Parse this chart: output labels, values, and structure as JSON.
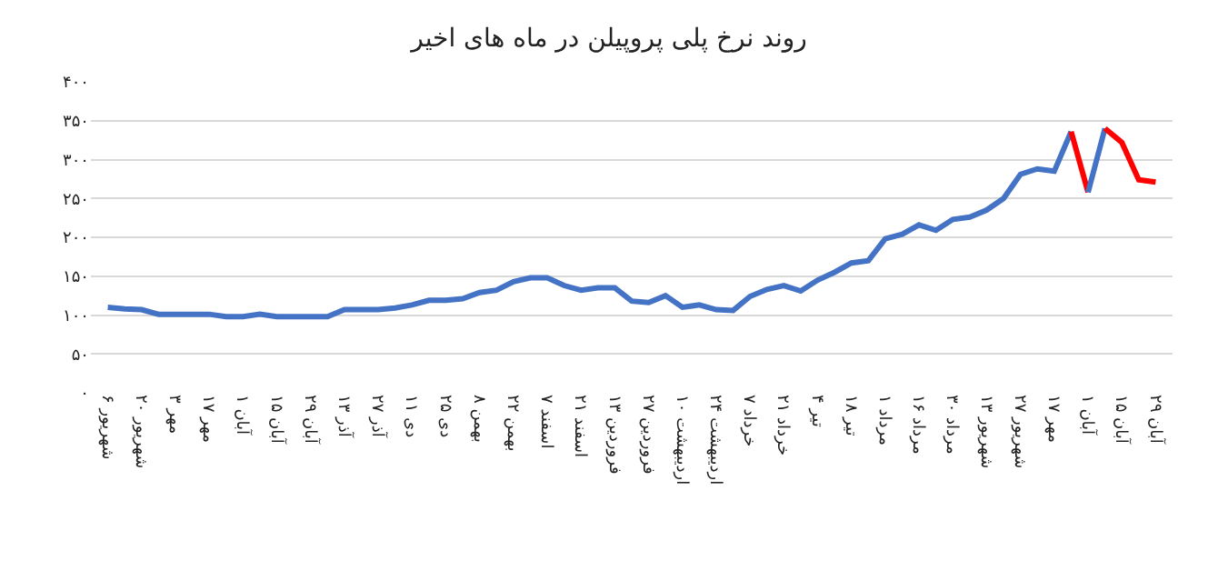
{
  "chart_data": {
    "type": "line",
    "title": "روند نرخ پلی پروپیلن در ماه های اخیر",
    "categories": [
      "۶ شهریور",
      null,
      "۲۰ شهریور",
      null,
      "۳ مهر",
      null,
      "۱۷ مهر",
      null,
      "۱ آبان",
      null,
      "۱۵ آبان",
      null,
      "۲۹ آبان",
      null,
      "۱۳ آذر",
      null,
      "۲۷ آذر",
      null,
      "۱۱ دی",
      null,
      "۲۵ دی",
      null,
      "۸ بهمن",
      null,
      "۲۲ بهمن",
      null,
      "۷ اسفند",
      null,
      "۲۱ اسفند",
      null,
      "۱۳ فروردین",
      null,
      "۲۷ فروردین",
      null,
      "۱۰ اردیبهشت",
      null,
      "۲۴ اردیبهشت",
      null,
      "۷ خرداد",
      null,
      "۲۱ خرداد",
      null,
      "۴ تیر",
      null,
      "۱۸ تیر",
      null,
      "۱ مرداد",
      null,
      "۱۶ مرداد",
      null,
      "۳۰ مرداد",
      null,
      "۱۳ شهریور",
      null,
      "۲۷ شهریور",
      null,
      "۱۷ مهر",
      null,
      "۱ آبان",
      null,
      "۱۵ آبان",
      null,
      "۲۹ آبان"
    ],
    "series": [
      {
        "color": "#4472c4",
        "values": [
          110,
          108,
          107,
          101,
          101,
          101,
          101,
          98,
          98,
          101,
          98,
          98,
          98,
          98,
          107,
          107,
          107,
          109,
          113,
          119,
          119,
          121,
          129,
          132,
          143,
          148,
          148,
          138,
          132,
          135,
          135,
          118,
          116,
          125,
          110,
          113,
          107,
          106,
          124,
          133,
          138,
          131,
          145,
          155,
          167,
          170,
          198,
          204,
          216,
          209,
          223,
          226,
          235,
          250,
          281,
          288,
          285,
          336,
          null,
          null,
          null,
          null,
          null
        ]
      },
      {
        "color": "#ff0000",
        "values": [
          null,
          null,
          null,
          null,
          null,
          null,
          null,
          null,
          null,
          null,
          null,
          null,
          null,
          null,
          null,
          null,
          null,
          null,
          null,
          null,
          null,
          null,
          null,
          null,
          null,
          null,
          null,
          null,
          null,
          null,
          null,
          null,
          null,
          null,
          null,
          null,
          null,
          null,
          null,
          null,
          null,
          null,
          null,
          null,
          null,
          null,
          null,
          null,
          null,
          null,
          null,
          null,
          null,
          null,
          null,
          null,
          null,
          336,
          258,
          null,
          null,
          null,
          null
        ]
      },
      {
        "color": "#4472c4",
        "values": [
          null,
          null,
          null,
          null,
          null,
          null,
          null,
          null,
          null,
          null,
          null,
          null,
          null,
          null,
          null,
          null,
          null,
          null,
          null,
          null,
          null,
          null,
          null,
          null,
          null,
          null,
          null,
          null,
          null,
          null,
          null,
          null,
          null,
          null,
          null,
          null,
          null,
          null,
          null,
          null,
          null,
          null,
          null,
          null,
          null,
          null,
          null,
          null,
          null,
          null,
          null,
          null,
          null,
          null,
          null,
          null,
          null,
          null,
          258,
          340,
          null,
          null,
          null
        ]
      },
      {
        "color": "#ff0000",
        "values": [
          null,
          null,
          null,
          null,
          null,
          null,
          null,
          null,
          null,
          null,
          null,
          null,
          null,
          null,
          null,
          null,
          null,
          null,
          null,
          null,
          null,
          null,
          null,
          null,
          null,
          null,
          null,
          null,
          null,
          null,
          null,
          null,
          null,
          null,
          null,
          null,
          null,
          null,
          null,
          null,
          null,
          null,
          null,
          null,
          null,
          null,
          null,
          null,
          null,
          null,
          null,
          null,
          null,
          null,
          null,
          null,
          null,
          null,
          null,
          340,
          322,
          274,
          271
        ]
      }
    ],
    "ylim": [
      0,
      400
    ],
    "yticks": [
      {
        "value": 0,
        "label": "۰"
      },
      {
        "value": 50,
        "label": "۵۰"
      },
      {
        "value": 100,
        "label": "۱۰۰"
      },
      {
        "value": 150,
        "label": "۱۵۰"
      },
      {
        "value": 200,
        "label": "۲۰۰"
      },
      {
        "value": 250,
        "label": "۲۵۰"
      },
      {
        "value": 300,
        "label": "۳۰۰"
      },
      {
        "value": 350,
        "label": "۳۵۰"
      },
      {
        "value": 400,
        "label": "۴۰۰"
      }
    ],
    "grid": "y",
    "marker": "none",
    "line_style": "solid"
  }
}
